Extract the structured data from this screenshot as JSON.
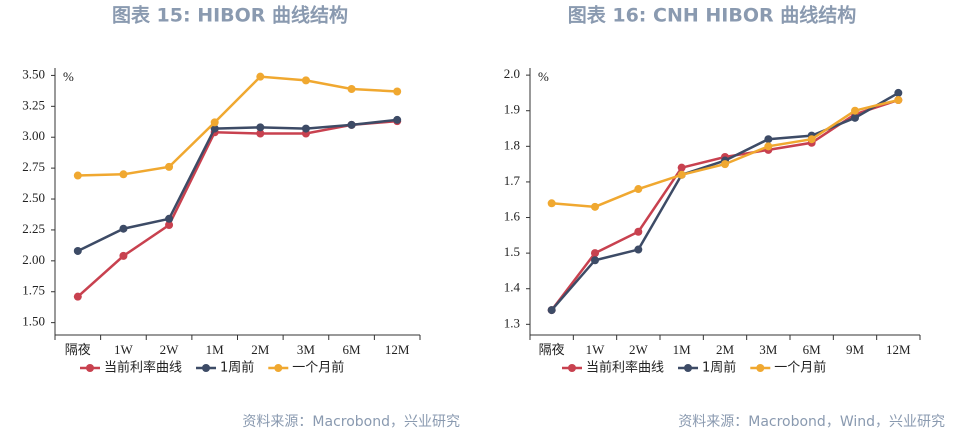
{
  "chart_data": [
    {
      "type": "line",
      "title": "图表 15: HIBOR 曲线结构",
      "y_label": "%",
      "categories": [
        "隔夜",
        "1W",
        "2W",
        "1M",
        "2M",
        "3M",
        "6M",
        "12M"
      ],
      "series": [
        {
          "name": "当前利率曲线",
          "color": "#c8414f",
          "values": [
            1.71,
            2.04,
            2.29,
            3.04,
            3.03,
            3.03,
            3.1,
            3.13
          ]
        },
        {
          "name": "1周前",
          "color": "#3d4b66",
          "values": [
            2.08,
            2.26,
            2.34,
            3.07,
            3.08,
            3.07,
            3.1,
            3.14
          ]
        },
        {
          "name": "一个月前",
          "color": "#f0a830",
          "values": [
            2.69,
            2.7,
            2.76,
            3.12,
            3.49,
            3.46,
            3.39,
            3.37
          ]
        }
      ],
      "ylim": [
        1.4,
        3.56
      ],
      "yticks": [
        {
          "value": 1.5,
          "label": "1.50"
        },
        {
          "value": 1.75,
          "label": "1.75"
        },
        {
          "value": 2,
          "label": "2.00"
        },
        {
          "value": 2.25,
          "label": "2.25"
        },
        {
          "value": 2.5,
          "label": "2.50"
        },
        {
          "value": 2.75,
          "label": "2.75"
        },
        {
          "value": 3,
          "label": "3.00"
        },
        {
          "value": 3.25,
          "label": "3.25"
        },
        {
          "value": 3.5,
          "label": "3.50"
        }
      ],
      "source": "资料来源：Macrobond，兴业研究"
    },
    {
      "type": "line",
      "title": "图表 16: CNH HIBOR 曲线结构",
      "y_label": "%",
      "categories": [
        "隔夜",
        "1W",
        "2W",
        "1M",
        "2M",
        "3M",
        "6M",
        "9M",
        "12M"
      ],
      "series": [
        {
          "name": "当前利率曲线",
          "color": "#c8414f",
          "values": [
            1.34,
            1.5,
            1.56,
            1.74,
            1.77,
            1.79,
            1.81,
            1.89,
            1.93
          ]
        },
        {
          "name": "1周前",
          "color": "#3d4b66",
          "values": [
            1.34,
            1.48,
            1.51,
            1.72,
            1.76,
            1.82,
            1.83,
            1.88,
            1.95
          ]
        },
        {
          "name": "一个月前",
          "color": "#f0a830",
          "values": [
            1.64,
            1.63,
            1.68,
            1.72,
            1.75,
            1.8,
            1.82,
            1.9,
            1.93
          ]
        }
      ],
      "ylim": [
        1.27,
        2.02
      ],
      "yticks": [
        1.3,
        1.4,
        1.5,
        1.6,
        1.7,
        1.8,
        1.9,
        {
          "value": 2,
          "label": "2.0"
        }
      ],
      "source": "资料来源：Macrobond，Wind，兴业研究"
    }
  ]
}
